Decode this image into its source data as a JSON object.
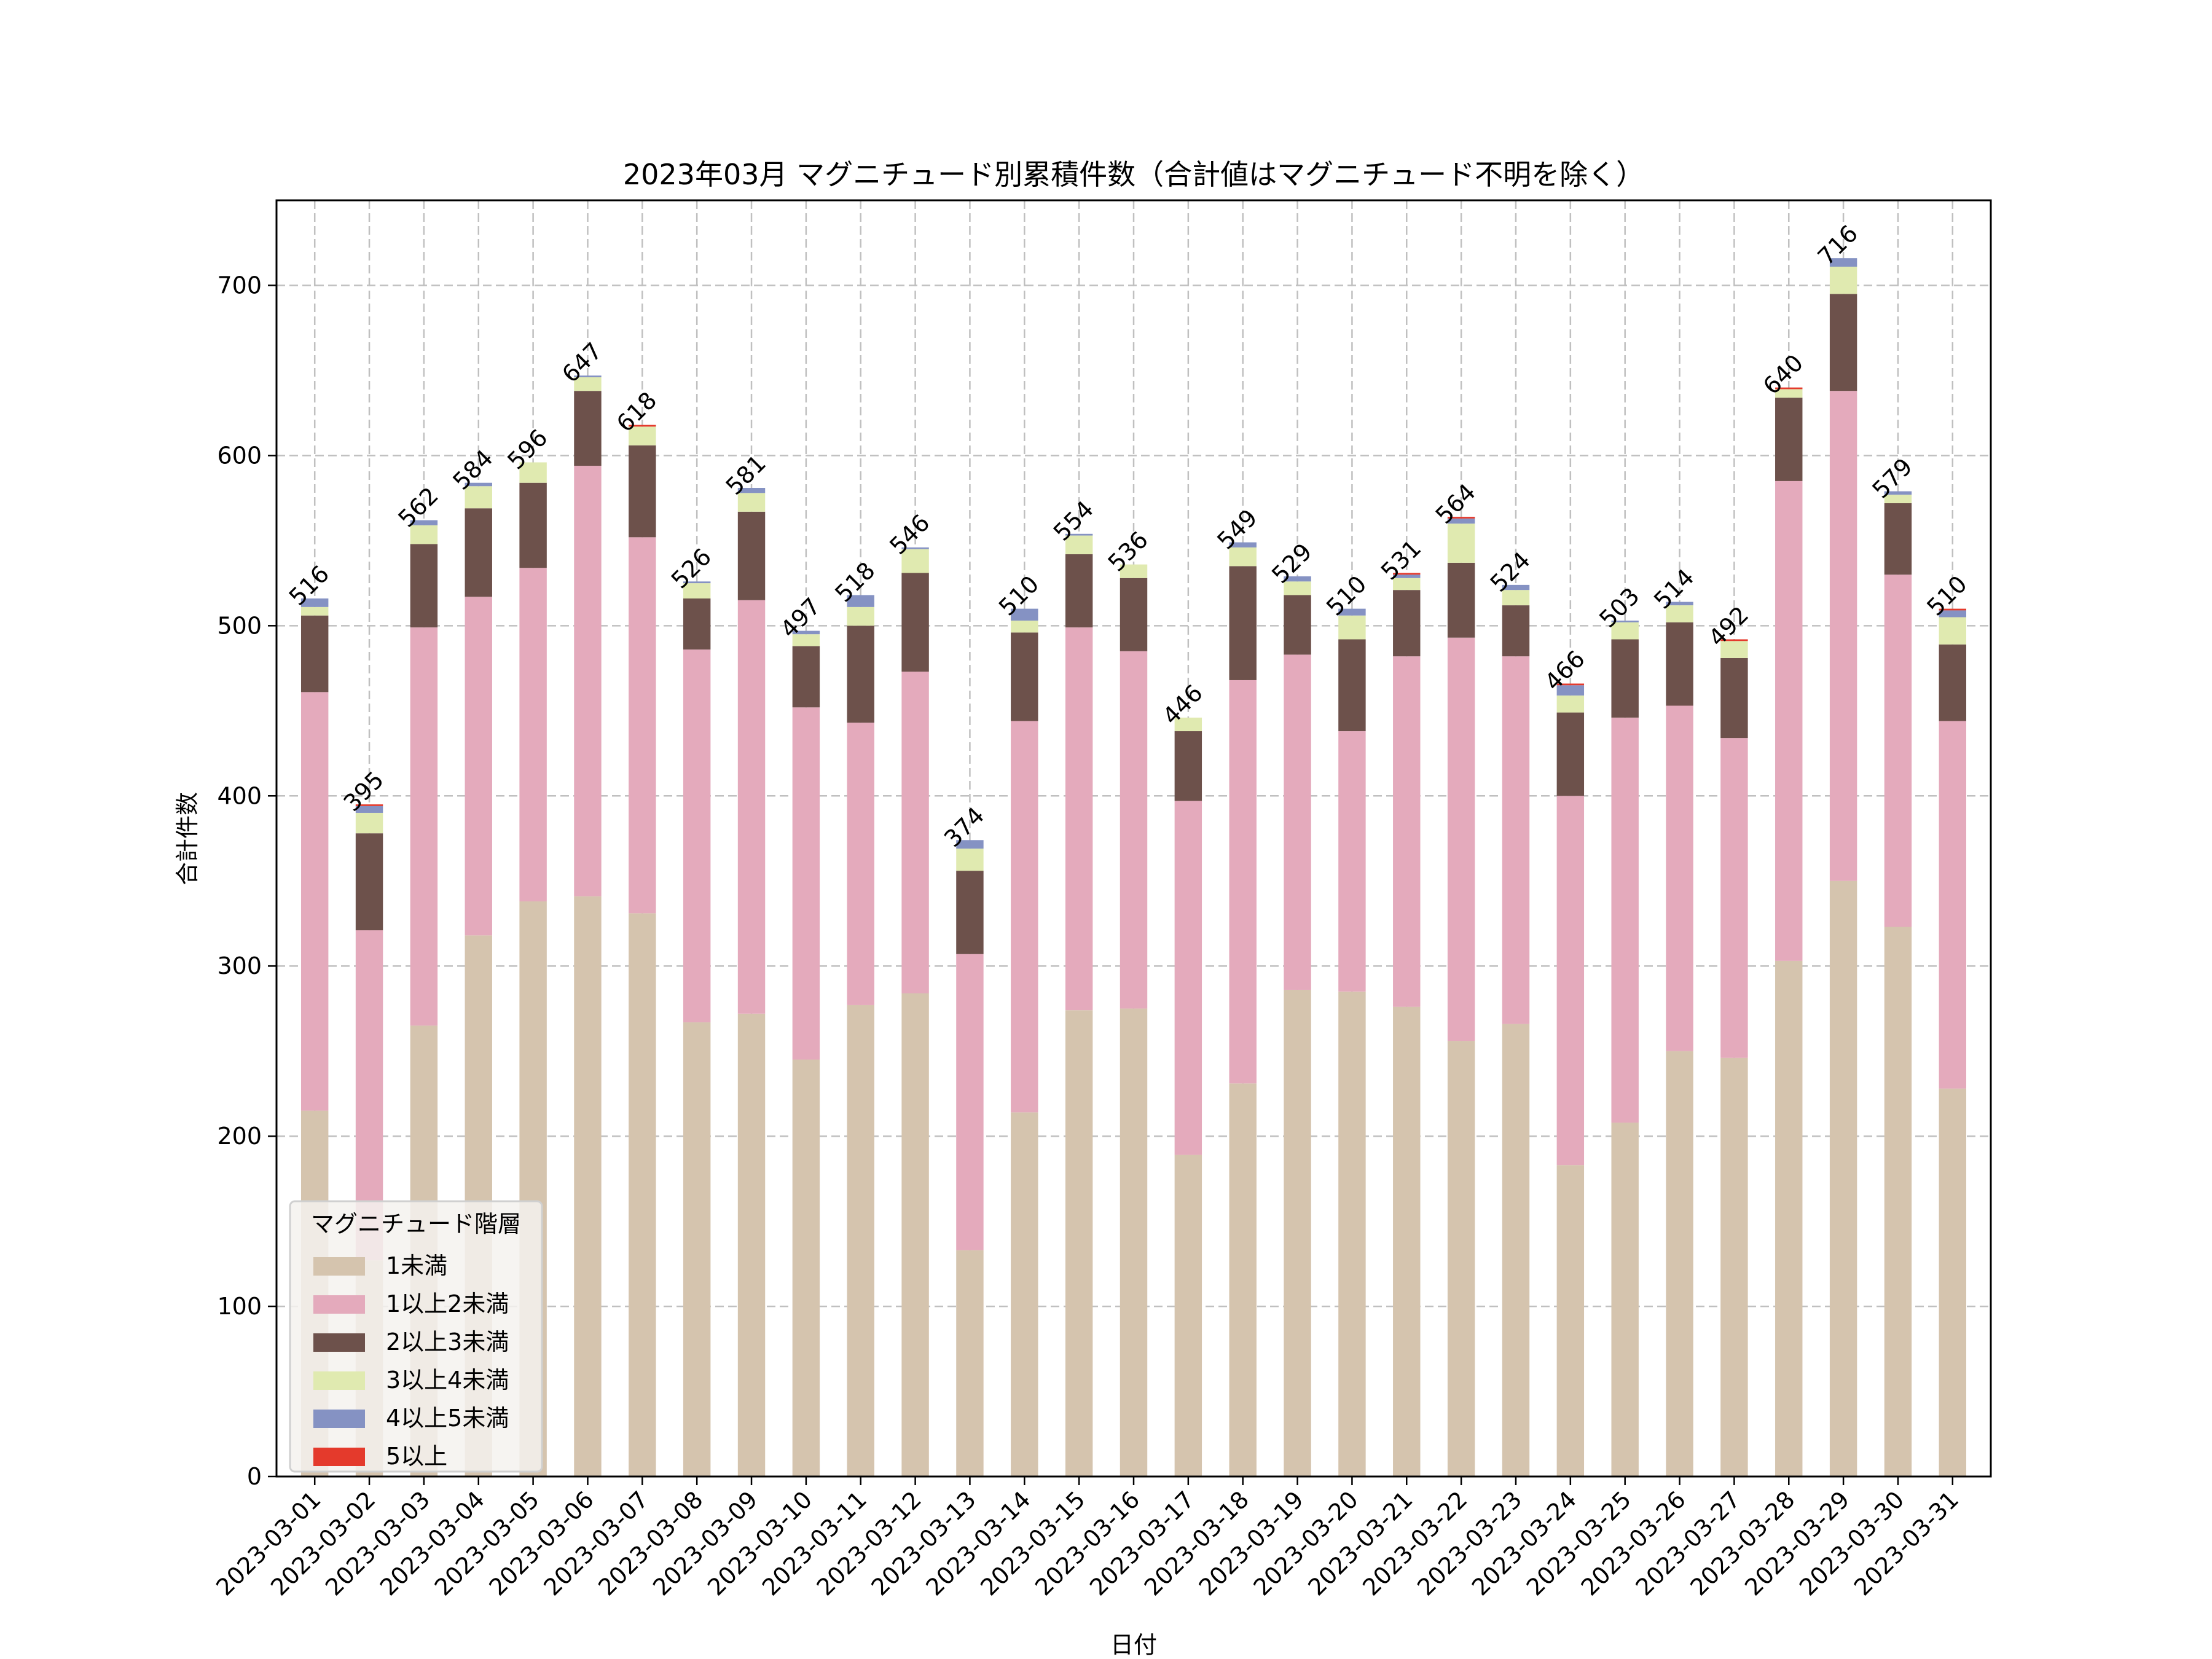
{
  "chart_data": {
    "type": "bar",
    "stacked": true,
    "title": "2023年03月 マグニチュード別累積件数（合計値はマグニチュード不明を除く）",
    "xlabel": "日付",
    "ylabel": "合計件数",
    "ylim": [
      0,
      750
    ],
    "yticks": [
      0,
      100,
      200,
      300,
      400,
      500,
      600,
      700
    ],
    "grid": true,
    "legend": {
      "title": "マグニチュード階層",
      "placement": "lower-left"
    },
    "categories": [
      "2023-03-01",
      "2023-03-02",
      "2023-03-03",
      "2023-03-04",
      "2023-03-05",
      "2023-03-06",
      "2023-03-07",
      "2023-03-08",
      "2023-03-09",
      "2023-03-10",
      "2023-03-11",
      "2023-03-12",
      "2023-03-13",
      "2023-03-14",
      "2023-03-15",
      "2023-03-16",
      "2023-03-17",
      "2023-03-18",
      "2023-03-19",
      "2023-03-20",
      "2023-03-21",
      "2023-03-22",
      "2023-03-23",
      "2023-03-24",
      "2023-03-25",
      "2023-03-26",
      "2023-03-27",
      "2023-03-28",
      "2023-03-29",
      "2023-03-30",
      "2023-03-31"
    ],
    "totals": [
      516,
      395,
      562,
      584,
      596,
      647,
      618,
      526,
      581,
      497,
      518,
      546,
      374,
      510,
      554,
      536,
      446,
      549,
      529,
      510,
      531,
      564,
      524,
      466,
      503,
      514,
      492,
      640,
      716,
      579,
      510
    ],
    "series": [
      {
        "name": "1未満",
        "color": "#d5c4ae",
        "values": [
          215,
          127,
          265,
          318,
          338,
          341,
          331,
          267,
          272,
          245,
          277,
          284,
          133,
          214,
          274,
          275,
          189,
          231,
          286,
          285,
          276,
          256,
          266,
          183,
          208,
          250,
          246,
          303,
          350,
          323,
          228
        ]
      },
      {
        "name": "1以上2未満",
        "color": "#e4aabc",
        "values": [
          246,
          194,
          234,
          199,
          196,
          253,
          221,
          219,
          243,
          207,
          166,
          189,
          174,
          230,
          225,
          210,
          208,
          237,
          197,
          153,
          206,
          237,
          216,
          217,
          238,
          203,
          188,
          282,
          288,
          207,
          216
        ]
      },
      {
        "name": "2以上3未満",
        "color": "#6d514b",
        "values": [
          45,
          57,
          49,
          52,
          50,
          44,
          54,
          30,
          52,
          36,
          57,
          58,
          49,
          52,
          43,
          43,
          41,
          67,
          35,
          54,
          39,
          44,
          30,
          49,
          46,
          49,
          47,
          49,
          57,
          42,
          45
        ]
      },
      {
        "name": "3以上4未満",
        "color": "#e0eab0",
        "values": [
          5,
          12,
          11,
          13,
          12,
          8,
          11,
          9,
          11,
          7,
          11,
          14,
          13,
          7,
          11,
          8,
          8,
          11,
          8,
          14,
          7,
          23,
          9,
          10,
          10,
          10,
          10,
          5,
          16,
          5,
          16
        ]
      },
      {
        "name": "4以上5未満",
        "color": "#8592c3",
        "values": [
          5,
          4,
          3,
          2,
          0,
          1,
          0,
          1,
          3,
          2,
          7,
          1,
          5,
          7,
          1,
          0,
          0,
          3,
          3,
          4,
          2,
          3,
          3,
          6,
          1,
          2,
          0,
          0,
          5,
          2,
          4
        ]
      },
      {
        "name": "5以上",
        "color": "#e43a2c",
        "values": [
          0,
          1,
          0,
          0,
          0,
          0,
          1,
          0,
          0,
          0,
          0,
          0,
          0,
          0,
          0,
          0,
          0,
          0,
          0,
          0,
          1,
          1,
          0,
          1,
          0,
          0,
          1,
          1,
          0,
          0,
          1
        ]
      }
    ]
  }
}
